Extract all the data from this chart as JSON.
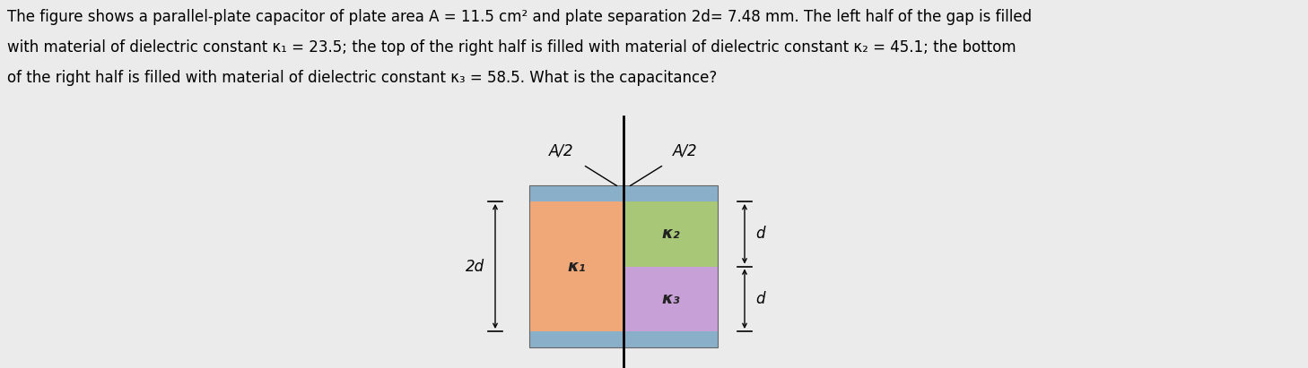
{
  "text_lines": [
    "The figure shows a parallel-plate capacitor of plate area A = 11.5 cm² and plate separation 2d= 7.48 mm. The left half of the gap is filled",
    "with material of dielectric constant κ₁ = 23.5; the top of the right half is filled with material of dielectric constant κ₂ = 45.1; the bottom",
    "of the right half is filled with material of dielectric constant κ₃ = 58.5. What is the capacitance?"
  ],
  "plate_color": "#8aafc8",
  "kappa1_color": "#f0a878",
  "kappa2_color": "#a8c878",
  "kappa3_color": "#c8a0d8",
  "label_k1": "κ₁",
  "label_k2": "κ₂",
  "label_k3": "κ₃",
  "label_2d": "2d",
  "label_d_top": "d",
  "label_d_bot": "d",
  "label_A2_left": "A/2",
  "label_A2_right": "A/2",
  "fig_width": 14.58,
  "fig_height": 4.11,
  "bg_color": "#ebebeb",
  "text_fontsize": 12.0,
  "diagram_fontsize": 13
}
